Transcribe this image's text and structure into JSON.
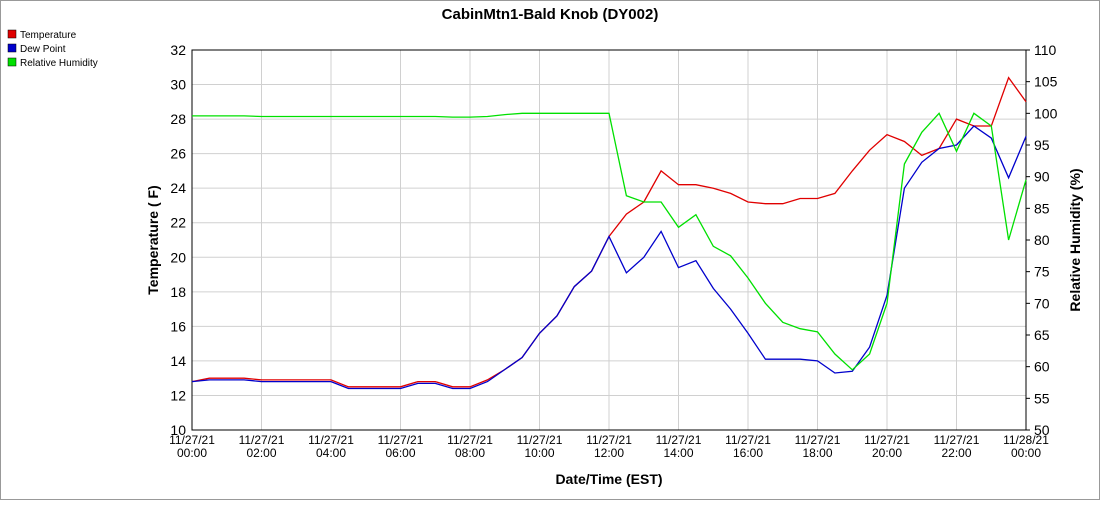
{
  "chart_data": {
    "type": "line",
    "title": "CabinMtn1-Bald Knob (DY002)",
    "x_label": "Date/Time (EST)",
    "y_label": "Temperature ( F)",
    "y2_label": "Relative Humidity (%)",
    "legend_position": "top-left",
    "grid": true,
    "x": [
      0,
      0.5,
      1,
      1.5,
      2,
      2.5,
      3,
      3.5,
      4,
      4.5,
      5,
      5.5,
      6,
      6.5,
      7,
      7.5,
      8,
      8.5,
      9,
      9.5,
      10,
      10.5,
      11,
      11.5,
      12,
      12.5,
      13,
      13.5,
      14,
      14.5,
      15,
      15.5,
      16,
      16.5,
      17,
      17.5,
      18,
      18.5,
      19,
      19.5,
      20,
      20.5,
      21,
      21.5,
      22,
      22.5,
      23,
      23.5,
      24
    ],
    "xlim": [
      0,
      24
    ],
    "xticks": [
      {
        "value": 0,
        "label": "11/27/21 00:00"
      },
      {
        "value": 2,
        "label": "11/27/21 02:00"
      },
      {
        "value": 4,
        "label": "11/27/21 04:00"
      },
      {
        "value": 6,
        "label": "11/27/21 06:00"
      },
      {
        "value": 8,
        "label": "11/27/21 08:00"
      },
      {
        "value": 10,
        "label": "11/27/21 10:00"
      },
      {
        "value": 12,
        "label": "11/27/21 12:00"
      },
      {
        "value": 14,
        "label": "11/27/21 14:00"
      },
      {
        "value": 16,
        "label": "11/27/21 16:00"
      },
      {
        "value": 18,
        "label": "11/27/21 18:00"
      },
      {
        "value": 20,
        "label": "11/27/21 20:00"
      },
      {
        "value": 22,
        "label": "11/27/21 22:00"
      },
      {
        "value": 24,
        "label": "11/28/21 00:00"
      }
    ],
    "ylim": [
      10,
      32
    ],
    "yticks": [
      10,
      12,
      14,
      16,
      18,
      20,
      22,
      24,
      26,
      28,
      30,
      32
    ],
    "y2lim": [
      50,
      110
    ],
    "y2ticks": [
      50,
      55,
      60,
      65,
      70,
      75,
      80,
      85,
      90,
      95,
      100,
      105,
      110
    ],
    "series": [
      {
        "name": "Temperature",
        "color": "#e00000",
        "values": [
          12.8,
          13.0,
          13.0,
          13.0,
          12.9,
          12.9,
          12.9,
          12.9,
          12.9,
          12.5,
          12.5,
          12.5,
          12.5,
          12.8,
          12.8,
          12.5,
          12.5,
          12.9,
          13.5,
          14.2,
          15.6,
          16.6,
          18.3,
          19.2,
          21.2,
          22.5,
          23.2,
          25.0,
          24.2,
          24.2,
          24.0,
          23.7,
          23.2,
          23.1,
          23.1,
          23.4,
          23.4,
          23.7,
          25.0,
          26.2,
          27.1,
          26.7,
          25.9,
          26.3,
          28.0,
          27.6,
          27.6,
          30.4,
          29.0
        ]
      },
      {
        "name": "Dew Point",
        "color": "#0000cc",
        "values": [
          12.8,
          12.9,
          12.9,
          12.9,
          12.8,
          12.8,
          12.8,
          12.8,
          12.8,
          12.4,
          12.4,
          12.4,
          12.4,
          12.7,
          12.7,
          12.4,
          12.4,
          12.8,
          13.5,
          14.2,
          15.6,
          16.6,
          18.3,
          19.2,
          21.2,
          19.1,
          20.0,
          21.5,
          19.4,
          19.8,
          18.2,
          17.0,
          15.6,
          14.1,
          14.1,
          14.1,
          14.0,
          13.3,
          13.4,
          14.8,
          17.8,
          24.0,
          25.5,
          26.3,
          26.5,
          27.6,
          26.9,
          24.6,
          27.0
        ]
      },
      {
        "name": "Relative Humidity",
        "color": "#00e000",
        "axis": "y2",
        "values": [
          99.6,
          99.6,
          99.6,
          99.6,
          99.5,
          99.5,
          99.5,
          99.5,
          99.5,
          99.5,
          99.5,
          99.5,
          99.5,
          99.5,
          99.5,
          99.4,
          99.4,
          99.5,
          99.8,
          100,
          100,
          100,
          100,
          100,
          100,
          87,
          86,
          86,
          82,
          84,
          79,
          77.5,
          74,
          70,
          67,
          66,
          65.5,
          62,
          59.5,
          62,
          70,
          92,
          97,
          100,
          94,
          100,
          98,
          80,
          89.5
        ]
      }
    ]
  }
}
